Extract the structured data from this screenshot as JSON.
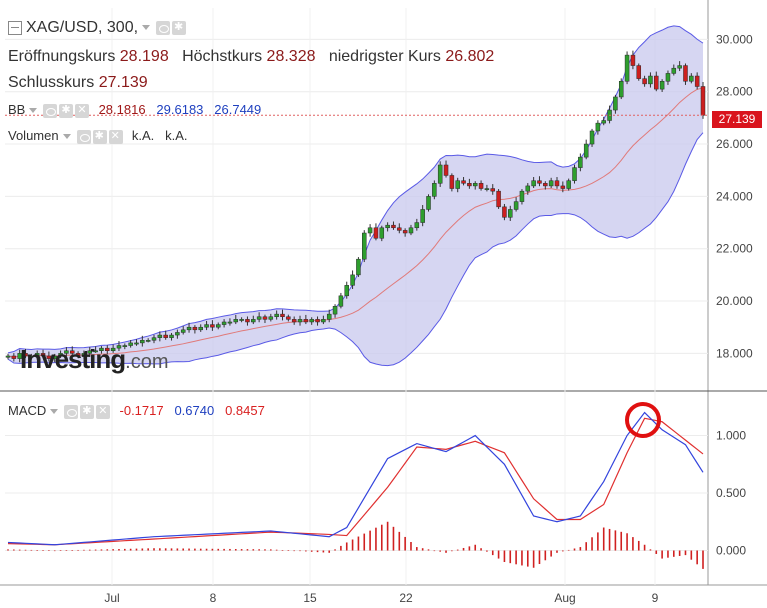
{
  "header": {
    "symbol": "XAG/USD, 300,",
    "open_label": "Eröffnungskurs",
    "open": "28.198",
    "high_label": "Höchstkurs",
    "high": "28.328",
    "low_label": "niedrigster Kurs",
    "low": "26.802",
    "close_label": "Schlusskurs",
    "close": "27.139"
  },
  "indicators": {
    "bb": {
      "label": "BB",
      "mid": "28.1816",
      "upper": "29.6183",
      "lower": "26.7449"
    },
    "volume": {
      "label": "Volumen",
      "v1": "k.A.",
      "v2": "k.A."
    },
    "macd": {
      "label": "MACD",
      "hist": "-0.1717",
      "macd": "0.6740",
      "signal": "0.8457"
    }
  },
  "price_tag": "27.139",
  "logo": {
    "text": "Investing",
    "suffix": ".com"
  },
  "colors": {
    "up": "#2e9e2e",
    "down": "#cc1f1f",
    "bb_fill": "#c8c8ee",
    "bb_line": "#5a5ae6",
    "bb_mid": "#e07a7a",
    "macd": "#3344dd",
    "signal": "#e03030",
    "hist": "#d02020"
  },
  "chart_data": [
    {
      "type": "candlestick",
      "y_ticks": [
        "30.000",
        "28.000",
        "26.000",
        "24.000",
        "22.000",
        "20.000",
        "18.000"
      ],
      "ylim": [
        16.6,
        31.2
      ],
      "x_ticks": [
        "Jul",
        "8",
        "15",
        "22",
        "Aug",
        "9"
      ],
      "close_series": [
        17.9,
        17.8,
        18.0,
        17.9,
        17.9,
        18.0,
        17.9,
        17.8,
        17.9,
        18.0,
        18.1,
        18.0,
        17.9,
        18.0,
        18.1,
        18.1,
        18.2,
        18.1,
        18.2,
        18.3,
        18.3,
        18.4,
        18.4,
        18.5,
        18.5,
        18.6,
        18.7,
        18.6,
        18.7,
        18.8,
        18.9,
        19.0,
        18.9,
        19.0,
        19.1,
        19.0,
        19.1,
        19.2,
        19.2,
        19.3,
        19.3,
        19.2,
        19.3,
        19.4,
        19.3,
        19.4,
        19.5,
        19.4,
        19.3,
        19.2,
        19.3,
        19.2,
        19.3,
        19.2,
        19.3,
        19.5,
        19.8,
        20.2,
        20.6,
        21.0,
        21.6,
        22.6,
        22.8,
        22.4,
        22.8,
        22.9,
        22.8,
        22.7,
        22.6,
        22.8,
        23.0,
        23.5,
        24.0,
        24.5,
        25.2,
        24.8,
        24.3,
        24.6,
        24.5,
        24.4,
        24.5,
        24.3,
        24.3,
        24.2,
        23.6,
        23.2,
        23.5,
        23.8,
        24.2,
        24.4,
        24.6,
        24.5,
        24.4,
        24.6,
        24.4,
        24.3,
        24.6,
        25.1,
        25.5,
        26.0,
        26.5,
        26.8,
        26.9,
        27.3,
        27.8,
        28.4,
        29.4,
        29.0,
        28.5,
        28.3,
        28.6,
        28.1,
        28.4,
        28.7,
        28.9,
        29.0,
        28.4,
        28.6,
        28.2,
        27.1
      ]
    },
    {
      "type": "line",
      "name": "MACD",
      "y_ticks": [
        "1.000",
        "0.500",
        "0.000"
      ],
      "ylim": [
        -0.3,
        1.37
      ],
      "macd_anchors": [
        [
          0,
          0.07
        ],
        [
          8,
          0.05
        ],
        [
          25,
          0.12
        ],
        [
          45,
          0.17
        ],
        [
          55,
          0.12
        ],
        [
          58,
          0.2
        ],
        [
          65,
          0.8
        ],
        [
          70,
          0.93
        ],
        [
          75,
          0.86
        ],
        [
          80,
          1.0
        ],
        [
          85,
          0.75
        ],
        [
          90,
          0.3
        ],
        [
          94,
          0.25
        ],
        [
          98,
          0.3
        ],
        [
          102,
          0.6
        ],
        [
          106,
          1.0
        ],
        [
          109,
          1.2
        ],
        [
          112,
          1.05
        ],
        [
          116,
          0.92
        ],
        [
          119,
          0.68
        ]
      ],
      "signal_anchors": [
        [
          0,
          0.06
        ],
        [
          8,
          0.05
        ],
        [
          25,
          0.1
        ],
        [
          45,
          0.16
        ],
        [
          55,
          0.14
        ],
        [
          58,
          0.13
        ],
        [
          65,
          0.55
        ],
        [
          70,
          0.9
        ],
        [
          75,
          0.88
        ],
        [
          80,
          0.95
        ],
        [
          85,
          0.85
        ],
        [
          90,
          0.45
        ],
        [
          94,
          0.27
        ],
        [
          98,
          0.27
        ],
        [
          102,
          0.4
        ],
        [
          106,
          0.85
        ],
        [
          109,
          1.15
        ],
        [
          112,
          1.12
        ],
        [
          116,
          0.96
        ],
        [
          119,
          0.84
        ]
      ]
    }
  ]
}
